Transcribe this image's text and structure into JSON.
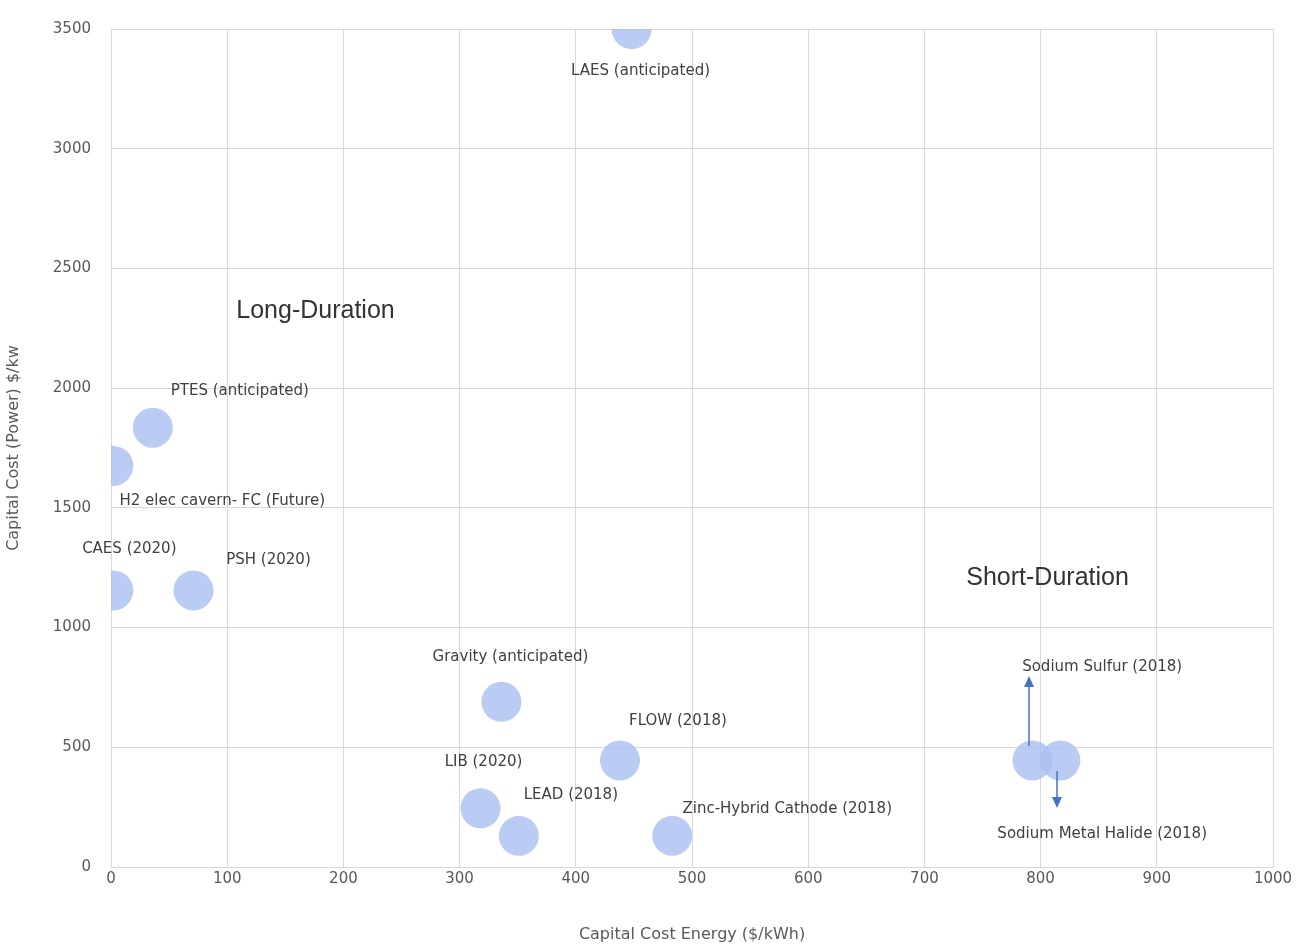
{
  "chart_data": {
    "type": "scatter",
    "xlabel": "Capital Cost Energy ($/kWh)",
    "ylabel": "Capital Cost (Power) $/kw",
    "x": [
      448,
      36,
      2,
      2,
      71,
      336,
      438,
      318,
      351,
      483,
      793,
      817
    ],
    "values": [
      3500,
      1835,
      1675,
      1155,
      1155,
      690,
      445,
      245,
      130,
      130,
      445,
      445
    ],
    "color": "#a9bff0",
    "marker": "circle",
    "grid": true,
    "legend": false,
    "xlim": [
      0,
      1000
    ],
    "xticks": [
      0,
      100,
      200,
      300,
      400,
      500,
      600,
      700,
      800,
      900,
      1000
    ],
    "ylim": [
      0,
      3500
    ],
    "yticks": [
      0,
      500,
      1000,
      1500,
      2000,
      2500,
      3000,
      3500
    ],
    "annotations": [
      {
        "text": "LAES (anticipated)",
        "x": 448,
        "y": 3500
      },
      {
        "text": "PTES (anticipated)",
        "x": 36,
        "y": 1835
      },
      {
        "text": "H2 elec cavern- FC (Future)",
        "x": 2,
        "y": 1675
      },
      {
        "text": "CAES (2020)",
        "x": 2,
        "y": 1155
      },
      {
        "text": "PSH (2020)",
        "x": 71,
        "y": 1155
      },
      {
        "text": "Gravity (anticipated)",
        "x": 336,
        "y": 690
      },
      {
        "text": "FLOW (2018)",
        "x": 438,
        "y": 445
      },
      {
        "text": "LIB (2020)",
        "x": 318,
        "y": 245
      },
      {
        "text": "LEAD (2018)",
        "x": 351,
        "y": 130
      },
      {
        "text": "Zinc-Hybrid Cathode (2018)",
        "x": 483,
        "y": 130
      },
      "Sodium Sulfur (2018)",
      "Sodium Metal Halide (2018)",
      "Long-Duration",
      "Short-Duration"
    ]
  }
}
